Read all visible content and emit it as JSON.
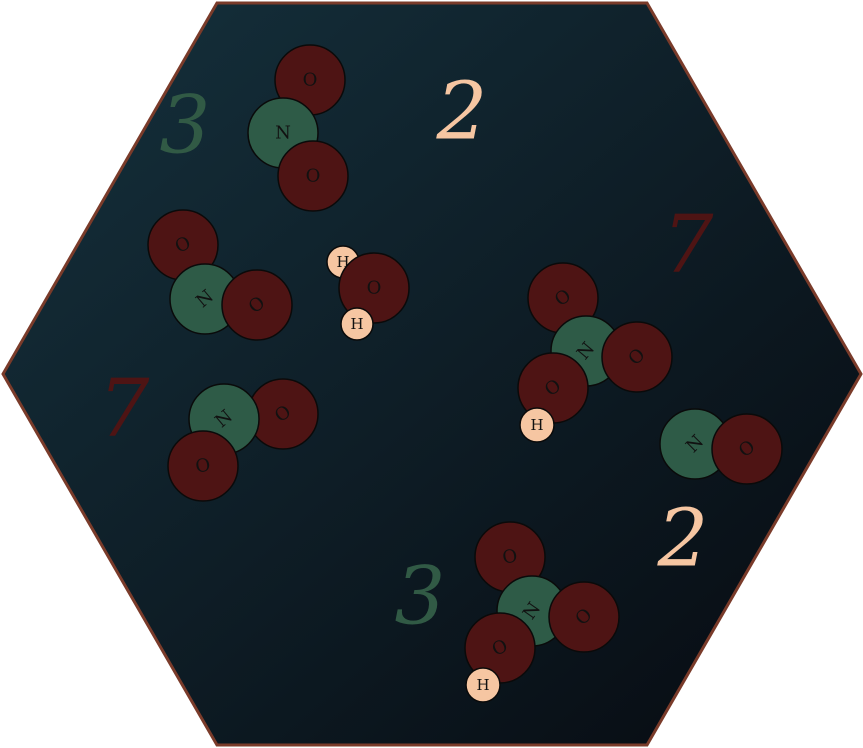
{
  "board": {
    "colors": {
      "border": "#7a3b2a",
      "bg_start": "#15313d",
      "bg_end": "#070a10",
      "nitrogen": "#2e5b47",
      "oxygen": "#4e1414",
      "hydrogen": "#f6c6a2"
    },
    "numbers": [
      {
        "text": "3",
        "color": "#315a45"
      },
      {
        "text": "2",
        "color": "#f6c6a2"
      },
      {
        "text": "7",
        "color": "#4e1414"
      },
      {
        "text": "7",
        "color": "#4e1414"
      },
      {
        "text": "2",
        "color": "#f6c6a2"
      },
      {
        "text": "3",
        "color": "#315a45"
      }
    ],
    "molecules": [
      {
        "formula": "NO2",
        "atoms": [
          "O",
          "N",
          "O"
        ]
      },
      {
        "formula": "NO2",
        "atoms": [
          "O",
          "N",
          "O"
        ]
      },
      {
        "formula": "H2O",
        "atoms": [
          "H",
          "O",
          "H"
        ]
      },
      {
        "formula": "HNO3",
        "atoms": [
          "O",
          "N",
          "O",
          "O",
          "H"
        ]
      },
      {
        "formula": "NO2",
        "atoms": [
          "O",
          "N",
          "O"
        ]
      },
      {
        "formula": "NO",
        "atoms": [
          "N",
          "O"
        ]
      },
      {
        "formula": "HNO3",
        "atoms": [
          "O",
          "N",
          "O",
          "O",
          "H"
        ]
      }
    ]
  }
}
